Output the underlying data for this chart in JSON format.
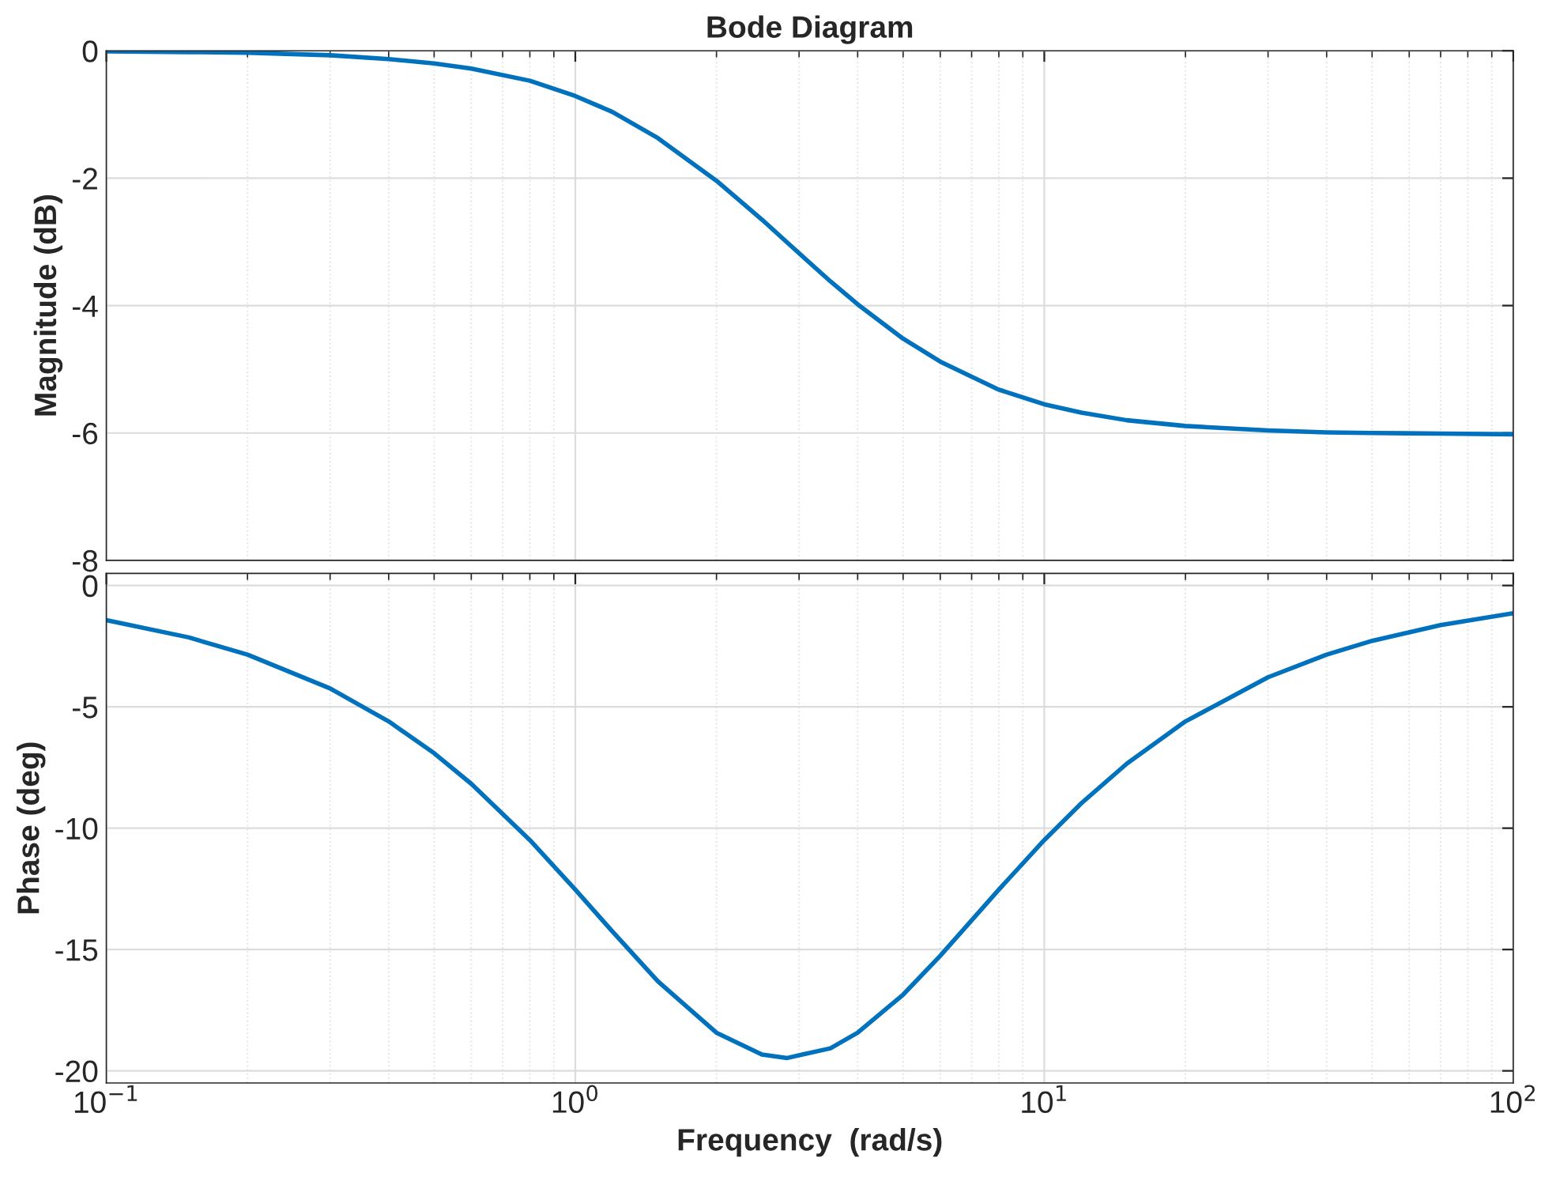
{
  "chart_data": [
    {
      "type": "line",
      "title": "Bode Diagram",
      "ylabel": "Magnitude (dB)",
      "log": "x",
      "grid": true,
      "tick_labels": "y",
      "x": [
        0.1,
        0.15,
        0.2,
        0.3,
        0.4,
        0.5,
        0.6,
        0.8,
        1,
        1.2,
        1.5,
        2,
        2.5,
        2.83,
        3.5,
        4,
        5,
        6,
        8,
        10,
        12,
        15,
        20,
        30,
        40,
        50,
        70,
        100
      ],
      "series": [
        {
          "color": "#0072bd",
          "values": [
            -0.01,
            -0.02,
            -0.03,
            -0.07,
            -0.13,
            -0.2,
            -0.28,
            -0.47,
            -0.71,
            -0.96,
            -1.37,
            -2.04,
            -2.65,
            -3.01,
            -3.62,
            -3.98,
            -4.52,
            -4.88,
            -5.32,
            -5.55,
            -5.68,
            -5.8,
            -5.89,
            -5.96,
            -5.99,
            -6.0,
            -6.01,
            -6.02
          ]
        }
      ],
      "xlim": [
        0.1,
        100
      ],
      "xticks": [
        {
          "value": 0.1,
          "label": null
        },
        {
          "value": 1,
          "label": null
        },
        {
          "value": 10,
          "label": null
        },
        {
          "value": 100,
          "label": null
        }
      ],
      "ylim": [
        -8,
        0
      ],
      "yticks": [
        -8,
        -6,
        -4,
        -2,
        0
      ]
    },
    {
      "type": "line",
      "xlabel": "Frequency  (rad/s)",
      "ylabel": "Phase (deg)",
      "log": "x",
      "grid": true,
      "x": [
        0.1,
        0.15,
        0.2,
        0.3,
        0.4,
        0.5,
        0.6,
        0.8,
        1,
        1.2,
        1.5,
        2,
        2.5,
        2.83,
        3.5,
        4,
        5,
        6,
        8,
        10,
        12,
        15,
        20,
        30,
        40,
        50,
        70,
        100
      ],
      "series": [
        {
          "color": "#0072bd",
          "values": [
            -1.43,
            -2.14,
            -2.85,
            -4.24,
            -5.6,
            -6.91,
            -8.17,
            -10.49,
            -12.53,
            -14.26,
            -16.31,
            -18.43,
            -19.33,
            -19.47,
            -19.07,
            -18.43,
            -16.86,
            -15.26,
            -12.53,
            -10.49,
            -8.97,
            -7.34,
            -5.6,
            -3.78,
            -2.85,
            -2.28,
            -1.63,
            -1.14
          ]
        }
      ],
      "xlim": [
        0.1,
        100
      ],
      "xticks": [
        {
          "value": 0.1,
          "label": "10$^{−1}$"
        },
        {
          "value": 1,
          "label": "10$^{0}$"
        },
        {
          "value": 10,
          "label": "10$^{1}$"
        },
        {
          "value": 100,
          "label": "10$^{2}$"
        }
      ],
      "ylim": [
        -20.5,
        0.5
      ],
      "yticks": [
        -20,
        -15,
        -10,
        -5,
        0
      ]
    }
  ]
}
